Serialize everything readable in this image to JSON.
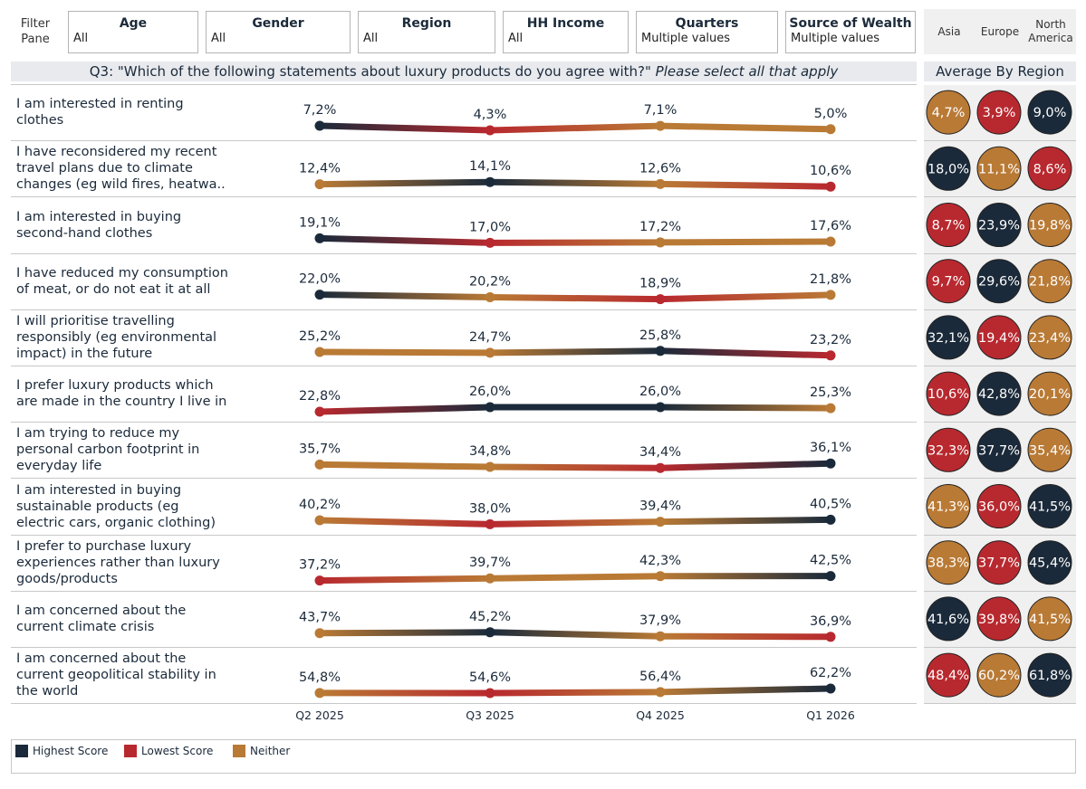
{
  "filter_pane": {
    "label_line1": "Filter",
    "label_line2": "Pane"
  },
  "filters": [
    {
      "title": "Age",
      "value": "All"
    },
    {
      "title": "Gender",
      "value": "All"
    },
    {
      "title": "Region",
      "value": "All"
    },
    {
      "title": "HH Income",
      "value": "All"
    },
    {
      "title": "Quarters",
      "value": "Multiple values"
    },
    {
      "title": "Source of Wealth",
      "value": "Multiple values"
    }
  ],
  "regions": {
    "asia": "Asia",
    "europe": "Europe",
    "north_america_line1": "North",
    "north_america_line2": "America"
  },
  "question": {
    "prefix": "Q3: \"Which of the following statements about luxury products do you agree with?\"",
    "suffix": "Please select all that apply"
  },
  "avg_by_region_title": "Average By Region",
  "colors": {
    "highest": "#1b2a3a",
    "lowest": "#b8292f",
    "neither": "#b97a35"
  },
  "legend": {
    "highest": "Highest Score",
    "lowest": "Lowest Score",
    "neither": "Neither"
  },
  "chart_data": {
    "type": "line",
    "categories": [
      "Q2 2025",
      "Q3 2025",
      "Q4 2025",
      "Q1 2026"
    ],
    "series": [
      {
        "name": "I am interested in renting clothes",
        "lines": [
          "I am interested in renting",
          "clothes"
        ],
        "values": [
          7.2,
          4.3,
          7.1,
          5.0
        ],
        "labels": [
          "7,2%",
          "4,3%",
          "7,1%",
          "5,0%"
        ],
        "region_values": [
          4.7,
          3.9,
          9.0
        ],
        "region_labels": [
          "4,7%",
          "3,9%",
          "9,0%"
        ]
      },
      {
        "name": "I have reconsidered my recent travel plans due to climate changes (eg wild fires, heatwa..",
        "lines": [
          "I have reconsidered my recent",
          "travel plans due to climate",
          "changes (eg wild fires, heatwa.."
        ],
        "values": [
          12.4,
          14.1,
          12.6,
          10.6
        ],
        "labels": [
          "12,4%",
          "14,1%",
          "12,6%",
          "10,6%"
        ],
        "region_values": [
          18.0,
          11.1,
          8.6
        ],
        "region_labels": [
          "18,0%",
          "11,1%",
          "8,6%"
        ]
      },
      {
        "name": "I am interested in buying second-hand clothes",
        "lines": [
          "I am interested in buying",
          "second-hand clothes"
        ],
        "values": [
          19.1,
          17.0,
          17.2,
          17.6
        ],
        "labels": [
          "19,1%",
          "17,0%",
          "17,2%",
          "17,6%"
        ],
        "region_values": [
          8.7,
          23.9,
          19.8
        ],
        "region_labels": [
          "8,7%",
          "23,9%",
          "19,8%"
        ]
      },
      {
        "name": "I have reduced my consumption of meat, or do not eat it at all",
        "lines": [
          "I have reduced my consumption",
          "of meat, or do not eat it at all"
        ],
        "values": [
          22.0,
          20.2,
          18.9,
          21.8
        ],
        "labels": [
          "22,0%",
          "20,2%",
          "18,9%",
          "21,8%"
        ],
        "region_values": [
          9.7,
          29.6,
          21.8
        ],
        "region_labels": [
          "9,7%",
          "29,6%",
          "21,8%"
        ]
      },
      {
        "name": "I will prioritise travelling responsibly (eg environmental impact) in the future",
        "lines": [
          "I will prioritise travelling",
          "responsibly (eg environmental",
          "impact) in the future"
        ],
        "values": [
          25.2,
          24.7,
          25.8,
          23.2
        ],
        "labels": [
          "25,2%",
          "24,7%",
          "25,8%",
          "23,2%"
        ],
        "region_values": [
          32.1,
          19.4,
          23.4
        ],
        "region_labels": [
          "32,1%",
          "19,4%",
          "23,4%"
        ]
      },
      {
        "name": "I prefer luxury products which are made in the country I live in",
        "lines": [
          "I prefer luxury products which",
          "are made in the country I live in"
        ],
        "values": [
          22.8,
          26.0,
          26.0,
          25.3
        ],
        "labels": [
          "22,8%",
          "26,0%",
          "26,0%",
          "25,3%"
        ],
        "region_values": [
          10.6,
          42.8,
          20.1
        ],
        "region_labels": [
          "10,6%",
          "42,8%",
          "20,1%"
        ]
      },
      {
        "name": "I am trying to reduce my personal carbon footprint in everyday life",
        "lines": [
          "I am trying to reduce my",
          "personal carbon footprint in",
          "everyday life"
        ],
        "values": [
          35.7,
          34.8,
          34.4,
          36.1
        ],
        "labels": [
          "35,7%",
          "34,8%",
          "34,4%",
          "36,1%"
        ],
        "region_values": [
          32.3,
          37.7,
          35.4
        ],
        "region_labels": [
          "32,3%",
          "37,7%",
          "35,4%"
        ]
      },
      {
        "name": "I am interested in buying sustainable products (eg electric cars, organic clothing)",
        "lines": [
          "I am interested in buying",
          "sustainable products (eg",
          "electric cars, organic clothing)"
        ],
        "values": [
          40.2,
          38.0,
          39.4,
          40.5
        ],
        "labels": [
          "40,2%",
          "38,0%",
          "39,4%",
          "40,5%"
        ],
        "region_values": [
          41.3,
          36.0,
          41.5
        ],
        "region_labels": [
          "41,3%",
          "36,0%",
          "41,5%"
        ]
      },
      {
        "name": "I prefer to purchase luxury experiences rather than luxury goods/products",
        "lines": [
          "I prefer to purchase luxury",
          "experiences rather than luxury",
          "goods/products"
        ],
        "values": [
          37.2,
          39.7,
          42.3,
          42.5
        ],
        "labels": [
          "37,2%",
          "39,7%",
          "42,3%",
          "42,5%"
        ],
        "region_values": [
          38.3,
          37.7,
          45.4
        ],
        "region_labels": [
          "38,3%",
          "37,7%",
          "45,4%"
        ]
      },
      {
        "name": "I am concerned about the current climate crisis",
        "lines": [
          "I am concerned about the",
          "current climate crisis"
        ],
        "values": [
          43.7,
          45.2,
          37.9,
          36.9
        ],
        "labels": [
          "43,7%",
          "45,2%",
          "37,9%",
          "36,9%"
        ],
        "region_values": [
          41.6,
          39.8,
          41.5
        ],
        "region_labels": [
          "41,6%",
          "39,8%",
          "41,5%"
        ]
      },
      {
        "name": "I am concerned about the current geopolitical stability in the world",
        "lines": [
          "I am concerned about the",
          "current geopolitical stability in",
          "the world"
        ],
        "values": [
          54.8,
          54.6,
          56.4,
          62.2
        ],
        "labels": [
          "54,8%",
          "54,6%",
          "56,4%",
          "62,2%"
        ],
        "region_values": [
          48.4,
          60.2,
          61.8
        ],
        "region_labels": [
          "48,4%",
          "60,2%",
          "61,8%"
        ]
      }
    ]
  }
}
